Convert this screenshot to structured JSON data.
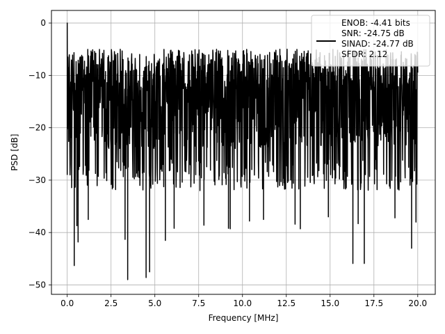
{
  "chart_data": {
    "type": "line",
    "title": "",
    "xlabel": "Frequency [MHz]",
    "ylabel": "PSD [dB]",
    "xlim": [
      -0.9,
      21.0
    ],
    "ylim": [
      -51.8,
      2.4
    ],
    "grid": true,
    "legend_position": "top-right",
    "x_ticks": [
      0.0,
      2.5,
      5.0,
      7.5,
      10.0,
      12.5,
      15.0,
      17.5,
      20.0
    ],
    "x_tick_labels": [
      "0.0",
      "2.5",
      "5.0",
      "7.5",
      "10.0",
      "12.5",
      "15.0",
      "17.5",
      "20.0"
    ],
    "y_ticks": [
      0,
      -10,
      -20,
      -30,
      -40,
      -50
    ],
    "y_tick_labels": [
      "0",
      "−10",
      "−20",
      "−30",
      "−40",
      "−50"
    ],
    "series": [
      {
        "name": "ENOB: -4.41 bits\nSNR: -24.75 dB\nSINAD: -24.77 dB\nSFDR: 2.12",
        "legend_lines": [
          "ENOB: -4.41 bits",
          "SNR: -24.75 dB",
          "SINAD: -24.77 dB",
          "SFDR: 2.12"
        ],
        "color": "#000000",
        "x_range": [
          0.0,
          20.0
        ],
        "approx_mean_db": -15,
        "approx_band_db": [
          -30,
          -5
        ],
        "peaks": [
          {
            "x": 0.0,
            "y": 0.0
          },
          {
            "x": 0.03,
            "y": -6.5
          }
        ],
        "dips": [
          {
            "x": 0.4,
            "y": -46.3
          },
          {
            "x": 0.55,
            "y": -38.7
          },
          {
            "x": 0.62,
            "y": -41.8
          },
          {
            "x": 1.2,
            "y": -37.5
          },
          {
            "x": 3.3,
            "y": -41.3
          },
          {
            "x": 3.45,
            "y": -49.0
          },
          {
            "x": 4.5,
            "y": -48.6
          },
          {
            "x": 4.7,
            "y": -47.5
          },
          {
            "x": 5.6,
            "y": -41.5
          },
          {
            "x": 6.1,
            "y": -39.2
          },
          {
            "x": 7.8,
            "y": -38.6
          },
          {
            "x": 9.2,
            "y": -39.2
          },
          {
            "x": 9.3,
            "y": -39.3
          },
          {
            "x": 10.4,
            "y": -37.8
          },
          {
            "x": 11.2,
            "y": -37.5
          },
          {
            "x": 13.0,
            "y": -38.4
          },
          {
            "x": 13.3,
            "y": -39.3
          },
          {
            "x": 14.9,
            "y": -37.0
          },
          {
            "x": 16.3,
            "y": -45.9
          },
          {
            "x": 16.6,
            "y": -38.3
          },
          {
            "x": 16.95,
            "y": -45.9
          },
          {
            "x": 18.7,
            "y": -37.2
          },
          {
            "x": 19.65,
            "y": -43.0
          },
          {
            "x": 19.9,
            "y": -38.0
          }
        ]
      }
    ]
  }
}
